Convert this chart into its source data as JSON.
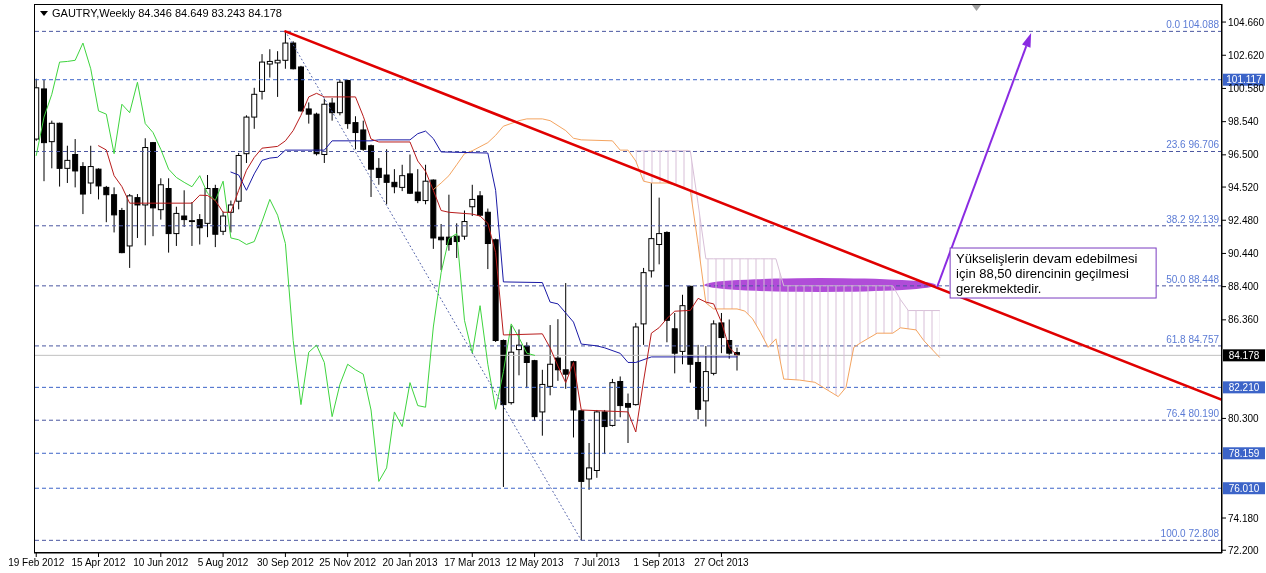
{
  "chart_data": {
    "type": "candlestick",
    "title": "GAUTRY,Weekly 84.346 84.649 83.243 84.178",
    "x": [
      "2012-02-19",
      "2012-02-26",
      "2012-03-04",
      "2012-03-11",
      "2012-03-18",
      "2012-03-25",
      "2012-04-01",
      "2012-04-08",
      "2012-04-15",
      "2012-04-22",
      "2012-04-29",
      "2012-05-06",
      "2012-05-13",
      "2012-05-20",
      "2012-05-27",
      "2012-06-03",
      "2012-06-10",
      "2012-06-17",
      "2012-06-24",
      "2012-07-01",
      "2012-07-08",
      "2012-07-15",
      "2012-07-22",
      "2012-07-29",
      "2012-08-05",
      "2012-08-12",
      "2012-08-19",
      "2012-08-26",
      "2012-09-02",
      "2012-09-09",
      "2012-09-16",
      "2012-09-23",
      "2012-09-30",
      "2012-10-07",
      "2012-10-14",
      "2012-10-21",
      "2012-10-28",
      "2012-11-04",
      "2012-11-11",
      "2012-11-18",
      "2012-11-25",
      "2012-12-02",
      "2012-12-09",
      "2012-12-16",
      "2012-12-23",
      "2012-12-30",
      "2013-01-06",
      "2013-01-13",
      "2013-01-20",
      "2013-01-27",
      "2013-02-03",
      "2013-02-10",
      "2013-02-17",
      "2013-02-24",
      "2013-03-03",
      "2013-03-10",
      "2013-03-17",
      "2013-03-24",
      "2013-03-31",
      "2013-04-07",
      "2013-04-14",
      "2013-04-21",
      "2013-04-28",
      "2013-05-05",
      "2013-05-12",
      "2013-05-19",
      "2013-05-26",
      "2013-06-02",
      "2013-06-09",
      "2013-06-16",
      "2013-06-23",
      "2013-06-30",
      "2013-07-07",
      "2013-07-14",
      "2013-07-21",
      "2013-07-28",
      "2013-08-04",
      "2013-08-11",
      "2013-08-18",
      "2013-08-25",
      "2013-09-01",
      "2013-09-08",
      "2013-09-15",
      "2013-09-22",
      "2013-09-29",
      "2013-10-06",
      "2013-10-13",
      "2013-10-20",
      "2013-10-27",
      "2013-11-03",
      "2013-11-10"
    ],
    "ohlc": [
      [
        97.47,
        101.18,
        97.36,
        100.62
      ],
      [
        100.55,
        101.12,
        94.88,
        97.25
      ],
      [
        97.31,
        98.6,
        95.67,
        98.44
      ],
      [
        98.44,
        98.48,
        94.55,
        95.67
      ],
      [
        95.67,
        97.06,
        94.77,
        96.16
      ],
      [
        96.52,
        97.47,
        94.5,
        95.51
      ],
      [
        95.78,
        96.05,
        92.86,
        94.09
      ],
      [
        94.77,
        97.06,
        94.09,
        95.78
      ],
      [
        95.62,
        95.67,
        93.76,
        94.59
      ],
      [
        94.5,
        94.59,
        92.36,
        94.05
      ],
      [
        94.05,
        94.5,
        91.73,
        92.81
      ],
      [
        93.08,
        93.24,
        90.45,
        90.49
      ],
      [
        90.9,
        94.09,
        89.55,
        93.98
      ],
      [
        93.87,
        94.09,
        91.39,
        93.42
      ],
      [
        93.42,
        97.52,
        90.94,
        96.95
      ],
      [
        97.25,
        97.29,
        91.5,
        93.24
      ],
      [
        93.13,
        95.06,
        92.52,
        94.66
      ],
      [
        94.43,
        95.06,
        90.49,
        91.66
      ],
      [
        91.66,
        93.31,
        90.9,
        92.9
      ],
      [
        92.74,
        94.32,
        92.07,
        92.52
      ],
      [
        92.45,
        93.6,
        90.9,
        92.43
      ],
      [
        92.52,
        92.86,
        90.99,
        92.02
      ],
      [
        92.29,
        95.26,
        91.44,
        94.43
      ],
      [
        94.43,
        94.66,
        90.83,
        91.62
      ],
      [
        91.8,
        93.01,
        91.57,
        92.74
      ],
      [
        92.97,
        93.69,
        91.73,
        93.42
      ],
      [
        93.65,
        96.62,
        93.15,
        96.46
      ],
      [
        96.57,
        98.93,
        96.0,
        98.82
      ],
      [
        98.82,
        100.62,
        98.1,
        100.22
      ],
      [
        100.4,
        102.69,
        99.9,
        102.2
      ],
      [
        102.08,
        102.99,
        101.25,
        102.24
      ],
      [
        102.15,
        102.87,
        100.06,
        102.31
      ],
      [
        102.31,
        104.088,
        101.79,
        103.37
      ],
      [
        103.37,
        103.48,
        101.75,
        101.79
      ],
      [
        101.9,
        101.97,
        99.16,
        99.2
      ],
      [
        99.32,
        99.72,
        98.42,
        99.0
      ],
      [
        99.0,
        99.09,
        96.46,
        96.57
      ],
      [
        96.52,
        99.95,
        96.0,
        99.61
      ],
      [
        99.68,
        99.99,
        98.6,
        99.09
      ],
      [
        99.09,
        101.12,
        98.93,
        100.96
      ],
      [
        101.07,
        101.12,
        98.1,
        98.42
      ],
      [
        98.48,
        98.87,
        96.84,
        97.87
      ],
      [
        98.03,
        98.6,
        96.75,
        96.84
      ],
      [
        97.06,
        97.13,
        93.91,
        95.62
      ],
      [
        95.67,
        96.3,
        94.66,
        95.11
      ],
      [
        95.26,
        96.84,
        93.46,
        94.81
      ],
      [
        94.81,
        95.62,
        94.14,
        94.54
      ],
      [
        94.5,
        95.89,
        94.27,
        95.22
      ],
      [
        95.33,
        96.52,
        94.09,
        94.14
      ],
      [
        94.21,
        95.62,
        93.53,
        93.69
      ],
      [
        93.69,
        95.89,
        93.46,
        94.88
      ],
      [
        94.95,
        94.99,
        90.72,
        91.39
      ],
      [
        91.44,
        92.25,
        89.41,
        91.28
      ],
      [
        91.44,
        94.05,
        90.61,
        90.99
      ],
      [
        91.5,
        92.29,
        90.16,
        91.17
      ],
      [
        91.5,
        93.08,
        91.28,
        92.4
      ],
      [
        93.31,
        94.66,
        92.74,
        93.76
      ],
      [
        93.98,
        94.27,
        92.7,
        92.79
      ],
      [
        92.97,
        93.2,
        89.48,
        91.05
      ],
      [
        91.28,
        91.35,
        85.0,
        85.09
      ],
      [
        85.09,
        85.15,
        76.09,
        81.15
      ],
      [
        81.27,
        86.0,
        81.15,
        84.37
      ],
      [
        84.53,
        85.77,
        82.95,
        84.8
      ],
      [
        84.75,
        84.98,
        82.16,
        83.74
      ],
      [
        83.85,
        83.9,
        80.14,
        80.41
      ],
      [
        80.7,
        83.29,
        79.24,
        82.39
      ],
      [
        82.27,
        86.04,
        81.72,
        83.63
      ],
      [
        84.01,
        86.4,
        82.61,
        83.29
      ],
      [
        83.29,
        88.62,
        82.12,
        83.02
      ],
      [
        83.79,
        83.85,
        79.13,
        80.82
      ],
      [
        80.77,
        80.82,
        72.808,
        76.43
      ],
      [
        76.58,
        78.79,
        75.91,
        77.26
      ],
      [
        77.1,
        80.82,
        76.65,
        80.7
      ],
      [
        80.7,
        80.82,
        78.11,
        79.8
      ],
      [
        79.87,
        82.73,
        79.8,
        82.5
      ],
      [
        82.57,
        82.88,
        80.37,
        81.09
      ],
      [
        81.22,
        81.83,
        78.79,
        80.99
      ],
      [
        81.15,
        86.17,
        81.09,
        85.92
      ],
      [
        86.11,
        89.55,
        84.82,
        89.26
      ],
      [
        89.37,
        94.77,
        88.96,
        91.35
      ],
      [
        90.99,
        93.87,
        89.77,
        91.66
      ],
      [
        91.73,
        91.8,
        84.98,
        86.33
      ],
      [
        85.81,
        86.78,
        83.07,
        84.31
      ],
      [
        84.42,
        87.9,
        83.63,
        87.23
      ],
      [
        88.42,
        88.45,
        82.5,
        83.63
      ],
      [
        83.74,
        84.82,
        80.25,
        80.86
      ],
      [
        81.38,
        84.75,
        79.8,
        83.18
      ],
      [
        83.07,
        86.33,
        82.95,
        86.11
      ],
      [
        86.17,
        86.78,
        84.31,
        85.27
      ],
      [
        85.09,
        86.38,
        83.97,
        84.31
      ],
      [
        84.346,
        84.649,
        83.243,
        84.178
      ]
    ],
    "xlim": [
      "2012-02-17",
      "2015-01-20"
    ],
    "xticks": [
      {
        "value": "2012-02-19",
        "label": "19 Feb 2012"
      },
      {
        "value": "2012-04-15",
        "label": "15 Apr 2012"
      },
      {
        "value": "2012-06-10",
        "label": "10 Jun 2012"
      },
      {
        "value": "2012-08-05",
        "label": "5 Aug 2012"
      },
      {
        "value": "2012-09-30",
        "label": "30 Sep 2012"
      },
      {
        "value": "2012-11-25",
        "label": "25 Nov 2012"
      },
      {
        "value": "2013-01-20",
        "label": "20 Jan 2013"
      },
      {
        "value": "2013-03-17",
        "label": "17 Mar 2013"
      },
      {
        "value": "2013-05-12",
        "label": "12 May 2013"
      },
      {
        "value": "2013-07-07",
        "label": "7 Jul 2013"
      },
      {
        "value": "2013-09-01",
        "label": "1 Sep 2013"
      },
      {
        "value": "2013-10-27",
        "label": "27 Oct 2013"
      }
    ],
    "ylim": [
      72.03,
      105.77
    ],
    "yticks": [
      {
        "value": 104.66,
        "label": "104.660"
      },
      {
        "value": 102.62,
        "label": "102.620"
      },
      {
        "value": 100.58,
        "label": "100.580"
      },
      {
        "value": 98.54,
        "label": "98.540"
      },
      {
        "value": 96.5,
        "label": "96.500"
      },
      {
        "value": 94.52,
        "label": "94.520"
      },
      {
        "value": 92.48,
        "label": "92.480"
      },
      {
        "value": 90.44,
        "label": "90.440"
      },
      {
        "value": 88.4,
        "label": "88.400"
      },
      {
        "value": 86.36,
        "label": "86.360"
      },
      {
        "value": 80.3,
        "label": "80.300"
      },
      {
        "value": 74.18,
        "label": "74.180"
      },
      {
        "value": 72.2,
        "label": "72.200"
      }
    ],
    "series": [
      {
        "type": "line",
        "color": "#f4a460",
        "x": [
          "2013-02-10",
          "2013-02-17",
          "2013-02-24",
          "2013-03-03",
          "2013-03-10",
          "2013-03-17",
          "2013-03-31",
          "2013-04-07",
          "2013-04-14",
          "2013-04-28",
          "2013-05-05",
          "2013-05-19",
          "2013-05-26",
          "2013-06-09",
          "2013-06-16",
          "2013-06-23",
          "2013-07-21",
          "2013-07-28",
          "2013-08-04",
          "2013-08-11",
          "2013-08-18",
          "2013-08-25",
          "2013-09-08",
          "2013-09-22",
          "2013-09-29",
          "2013-10-06",
          "2013-10-13",
          "2013-10-20",
          "2013-11-10",
          "2013-11-17",
          "2013-11-24",
          "2013-12-01",
          "2013-12-08",
          "2013-12-15",
          "2013-12-22",
          "2014-01-05",
          "2014-01-19",
          "2014-02-09",
          "2014-02-16",
          "2014-02-23",
          "2014-03-02",
          "2014-03-16",
          "2014-03-30",
          "2014-04-06",
          "2014-04-20",
          "2014-04-27",
          "2014-05-11"
        ],
        "values": [
          94.36,
          94.77,
          95.22,
          95.89,
          96.57,
          96.75,
          97.25,
          97.7,
          98.26,
          98.6,
          98.71,
          98.71,
          98.6,
          97.99,
          97.52,
          97.42,
          97.36,
          96.79,
          96.79,
          96.12,
          94.88,
          94.77,
          94.77,
          94.54,
          94.32,
          91.0,
          87.4,
          87.03,
          87.03,
          86.9,
          86.42,
          85.6,
          84.67,
          85.19,
          82.72,
          82.66,
          82.52,
          81.64,
          82.21,
          84.67,
          84.98,
          85.54,
          85.54,
          85.87,
          85.74,
          85.08,
          84.06
        ]
      },
      {
        "type": "line",
        "color": "#d8bfd8",
        "x": [
          "2013-08-11",
          "2013-08-18",
          "2013-08-25",
          "2013-09-08",
          "2013-09-22",
          "2013-09-29",
          "2013-10-06",
          "2013-10-13",
          "2013-10-20",
          "2013-11-10",
          "2013-11-17",
          "2013-11-24",
          "2013-12-01",
          "2013-12-08",
          "2013-12-15",
          "2013-12-22",
          "2014-01-05",
          "2014-01-19",
          "2014-02-09",
          "2014-02-16",
          "2014-02-23",
          "2014-03-02",
          "2014-03-16",
          "2014-03-30",
          "2014-04-06",
          "2014-04-13",
          "2014-04-20",
          "2014-04-27",
          "2014-05-11"
        ],
        "values": [
          96.75,
          96.75,
          96.75,
          96.75,
          96.75,
          96.75,
          93.5,
          90.11,
          90.11,
          90.11,
          90.11,
          90.11,
          90.11,
          90.11,
          90.11,
          88.45,
          88.45,
          88.45,
          88.45,
          88.45,
          88.45,
          88.45,
          88.45,
          88.45,
          87.6,
          86.93,
          86.93,
          86.93,
          86.93
        ],
        "lower": [
          96.12,
          94.88,
          94.77,
          94.77,
          94.54,
          94.32,
          91.0,
          87.4,
          87.03,
          87.03,
          86.9,
          86.42,
          85.6,
          84.67,
          85.19,
          82.72,
          82.66,
          82.52,
          81.64,
          82.21,
          84.67,
          84.98,
          85.54,
          85.54,
          85.87,
          85.8,
          85.74,
          85.08,
          84.06
        ],
        "upper": [
          96.75,
          96.75,
          96.75,
          96.75,
          96.75,
          96.75,
          93.5,
          90.11,
          90.11,
          90.11,
          90.11,
          90.11,
          90.11,
          90.11,
          90.11,
          88.45,
          88.45,
          88.45,
          88.45,
          88.45,
          88.45,
          88.45,
          88.45,
          88.45,
          87.6,
          86.93,
          86.93,
          86.93,
          86.93
        ]
      },
      {
        "type": "line",
        "color": "#3ed43e",
        "x": [
          "2012-02-19",
          "2012-02-26",
          "2012-03-04",
          "2012-03-11",
          "2012-03-18",
          "2012-03-25",
          "2012-04-01",
          "2012-04-08",
          "2012-04-15",
          "2012-04-22",
          "2012-04-29",
          "2012-05-06",
          "2012-05-13",
          "2012-05-20",
          "2012-05-27",
          "2012-06-03",
          "2012-06-10",
          "2012-06-17",
          "2012-06-24",
          "2012-07-01",
          "2012-07-08",
          "2012-07-15",
          "2012-07-22",
          "2012-07-29",
          "2012-08-05",
          "2012-08-12",
          "2012-08-19",
          "2012-08-26",
          "2012-09-02",
          "2012-09-09",
          "2012-09-16",
          "2012-09-23",
          "2012-09-30",
          "2012-10-07",
          "2012-10-14",
          "2012-10-21",
          "2012-10-28",
          "2012-11-04",
          "2012-11-11",
          "2012-11-18",
          "2012-11-25",
          "2012-12-02",
          "2012-12-09",
          "2012-12-16",
          "2012-12-23",
          "2012-12-30",
          "2013-01-06",
          "2013-01-13",
          "2013-01-20",
          "2013-01-27",
          "2013-02-03",
          "2013-02-10",
          "2013-02-17",
          "2013-02-24",
          "2013-03-03",
          "2013-03-10",
          "2013-03-17",
          "2013-03-24",
          "2013-03-31",
          "2013-04-07",
          "2013-04-14",
          "2013-04-21",
          "2013-04-28",
          "2013-05-05",
          "2013-05-12"
        ],
        "values": [
          96.46,
          98.82,
          100.22,
          102.2,
          102.24,
          102.31,
          103.37,
          101.79,
          99.2,
          99.0,
          96.57,
          99.61,
          99.09,
          100.96,
          98.42,
          97.87,
          96.84,
          95.62,
          95.11,
          94.81,
          94.54,
          95.22,
          94.14,
          93.69,
          94.88,
          91.39,
          91.28,
          90.99,
          91.17,
          92.4,
          93.76,
          92.79,
          91.05,
          85.09,
          81.15,
          84.37,
          84.8,
          83.74,
          80.41,
          82.39,
          83.63,
          83.29,
          83.02,
          80.82,
          76.43,
          77.26,
          80.7,
          79.8,
          82.5,
          81.09,
          80.99,
          85.92,
          89.26,
          91.35,
          91.66,
          86.33,
          84.31,
          87.23,
          83.63,
          80.86,
          83.18,
          86.11,
          85.27,
          84.31,
          84.178
        ]
      },
      {
        "type": "line",
        "color": "#1a1aa6",
        "x": [
          "2012-08-12",
          "2012-08-19",
          "2012-08-26",
          "2012-09-02",
          "2012-09-09",
          "2012-09-16",
          "2012-09-23",
          "2012-09-30",
          "2012-11-04",
          "2012-11-11",
          "2012-12-16",
          "2012-12-23",
          "2013-01-20",
          "2013-01-27",
          "2013-02-03",
          "2013-02-10",
          "2013-02-17",
          "2013-03-31",
          "2013-04-07",
          "2013-04-14",
          "2013-05-19",
          "2013-05-26",
          "2013-06-02",
          "2013-06-16",
          "2013-06-23",
          "2013-07-07",
          "2013-07-14",
          "2013-07-28",
          "2013-08-04",
          "2013-08-11",
          "2013-08-25",
          "2013-11-10"
        ],
        "values": [
          95.44,
          95.26,
          94.32,
          95.33,
          96.16,
          96.3,
          96.35,
          96.79,
          96.79,
          97.36,
          97.36,
          97.42,
          97.42,
          97.8,
          97.96,
          97.5,
          96.68,
          96.61,
          94.32,
          88.69,
          88.65,
          87.45,
          87.34,
          86.22,
          84.87,
          84.76,
          84.64,
          84.3,
          83.74,
          83.74,
          84.08,
          84.08
        ]
      },
      {
        "type": "line",
        "color": "#b81c1c",
        "x": [
          "2012-04-15",
          "2012-04-22",
          "2012-04-29",
          "2012-05-06",
          "2012-05-13",
          "2012-07-08",
          "2012-07-15",
          "2012-07-22",
          "2012-07-29",
          "2012-08-05",
          "2012-08-12",
          "2012-08-19",
          "2012-08-26",
          "2012-09-02",
          "2012-09-09",
          "2012-09-23",
          "2012-09-30",
          "2012-10-07",
          "2012-10-14",
          "2012-10-21",
          "2012-10-28",
          "2012-11-04",
          "2012-12-02",
          "2012-12-09",
          "2012-12-16",
          "2012-12-23",
          "2013-01-20",
          "2013-01-27",
          "2013-02-03",
          "2013-02-10",
          "2013-02-17",
          "2013-02-24",
          "2013-03-17",
          "2013-03-24",
          "2013-03-31",
          "2013-04-07",
          "2013-04-14",
          "2013-05-19",
          "2013-05-26",
          "2013-06-02",
          "2013-06-09",
          "2013-06-16",
          "2013-06-23",
          "2013-08-04",
          "2013-08-11",
          "2013-08-18",
          "2013-08-25",
          "2013-09-01",
          "2013-09-08",
          "2013-09-15",
          "2013-09-29",
          "2013-10-06",
          "2013-10-13",
          "2013-10-20",
          "2013-10-27",
          "2013-11-03",
          "2013-11-10"
        ],
        "values": [
          97.06,
          96.8,
          95.22,
          94.55,
          93.53,
          93.53,
          94.02,
          94.0,
          93.69,
          92.97,
          92.97,
          94.32,
          95.55,
          96.34,
          96.91,
          97.02,
          97.36,
          97.99,
          98.93,
          100.06,
          100.28,
          100.06,
          100.06,
          98.87,
          97.47,
          97.29,
          97.29,
          96.12,
          95.49,
          94.32,
          93.08,
          92.97,
          92.86,
          92.74,
          92.29,
          90.49,
          85.43,
          85.5,
          84.64,
          83.52,
          82.5,
          83.74,
          80.82,
          80.7,
          79.47,
          82.61,
          85.54,
          85.88,
          86.44,
          86.89,
          86.94,
          87.68,
          87.45,
          87.34,
          86.22,
          84.64,
          84.19
        ]
      },
      {
        "type": "line",
        "color": "#5060a8",
        "line_style": "dotted",
        "x": [
          "2012-09-30",
          "2013-06-23"
        ],
        "values": [
          104.088,
          72.808
        ]
      },
      {
        "type": "line",
        "color": "#e00000",
        "x": [
          "2012-09-30",
          "2015-01-20"
        ],
        "values": [
          104.088,
          81.44
        ]
      }
    ],
    "ref_lines": [
      {
        "axis": "y",
        "value": 104.088,
        "label": "0.0 104.088",
        "line_style": "dashed"
      },
      {
        "axis": "y",
        "value": 96.706,
        "label": "23.6 96.706",
        "line_style": "dashed"
      },
      {
        "axis": "y",
        "value": 92.139,
        "label": "38.2 92.139",
        "line_style": "dashed"
      },
      {
        "axis": "y",
        "value": 88.448,
        "label": "50.0 88.448",
        "line_style": "dashed"
      },
      {
        "axis": "y",
        "value": 84.757,
        "label": "61.8 84.757",
        "line_style": "dashed"
      },
      {
        "axis": "y",
        "value": 80.19,
        "label": "76.4 80.190",
        "line_style": "dashed"
      },
      {
        "axis": "y",
        "value": 72.808,
        "label": "100.0 72.808",
        "line_style": "dashed"
      },
      {
        "axis": "y",
        "value": 101.117,
        "label": "101.117",
        "color": "#3c64c8",
        "line_style": "dashed"
      },
      {
        "axis": "y",
        "value": 82.21,
        "label": "82.210",
        "color": "#3c64c8",
        "line_style": "dashed"
      },
      {
        "axis": "y",
        "value": 78.159,
        "label": "78.159",
        "color": "#3c64c8",
        "line_style": "dashed"
      },
      {
        "axis": "y",
        "value": 76.01,
        "label": "76.010",
        "color": "#3c64c8",
        "line_style": "dashed"
      },
      {
        "axis": "y",
        "value": 84.178,
        "label": "84.178",
        "color": "#c0c0c0"
      }
    ],
    "annotations": [
      {
        "text": "Yükselişlerin devam edebilmesi için 88,50 direncinin geçilmesi gerekmektedir.",
        "x": "2014-05-08",
        "y": 88.5
      }
    ]
  }
}
